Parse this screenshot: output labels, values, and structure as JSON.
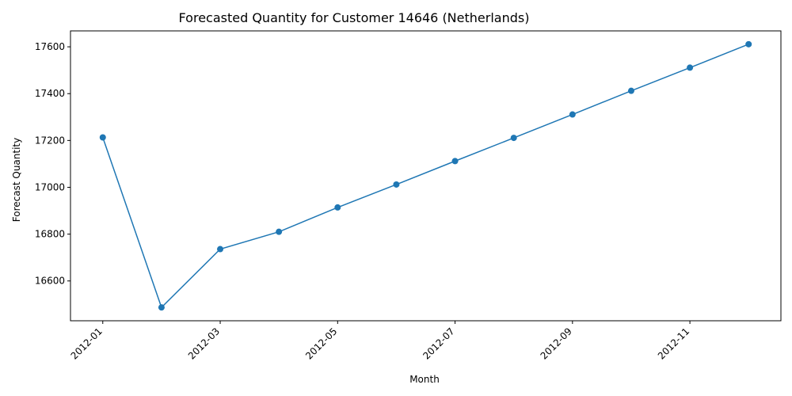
{
  "chart_data": {
    "type": "line",
    "title": "Forecasted Quantity for Customer 14646 (Netherlands)",
    "xlabel": "Month",
    "ylabel": "Forecast Quantity",
    "x": [
      "2012-01",
      "2012-02",
      "2012-03",
      "2012-04",
      "2012-05",
      "2012-06",
      "2012-07",
      "2012-08",
      "2012-09",
      "2012-10",
      "2012-11",
      "2012-12"
    ],
    "x_ticks": [
      "2012-01",
      "2012-03",
      "2012-05",
      "2012-07",
      "2012-09",
      "2012-11"
    ],
    "x_tick_rotation": 45,
    "series": [
      {
        "values": [
          17213,
          16487,
          16736,
          16810,
          16914,
          17012,
          17112,
          17211,
          17311,
          17412,
          17511,
          17611
        ],
        "color": "#1f77b4",
        "marker": "circle"
      }
    ],
    "y_ticks": [
      16600,
      16800,
      17000,
      17200,
      17400,
      17600
    ],
    "ylim": [
      16430,
      17668
    ],
    "grid": false,
    "legend": "none"
  }
}
